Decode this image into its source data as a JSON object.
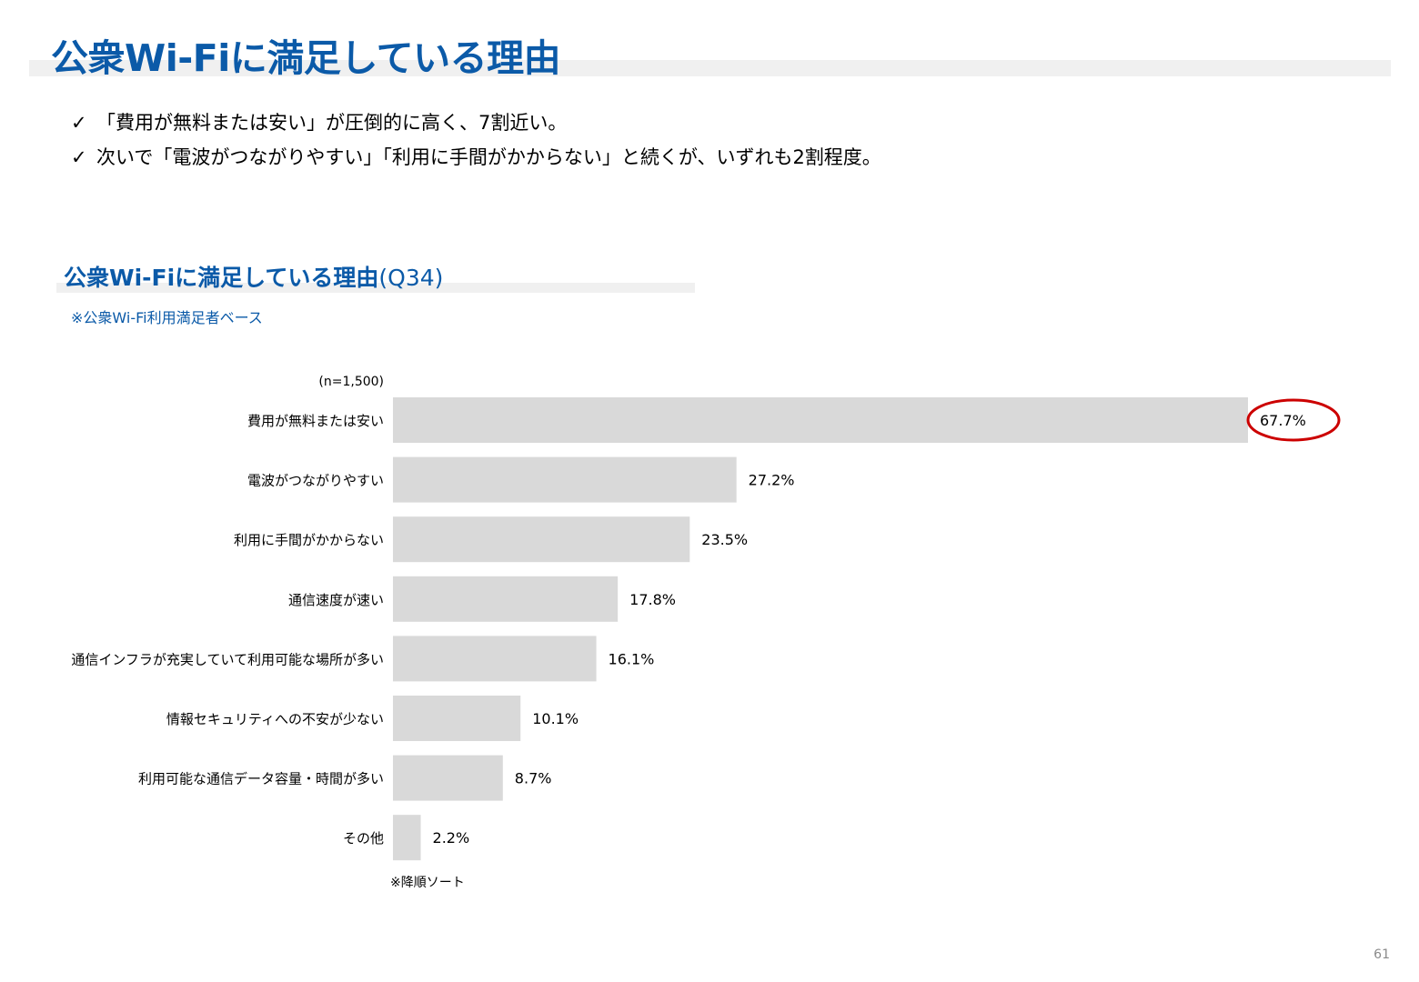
{
  "header": {
    "title": "公衆Wi-Fiに満足している理由"
  },
  "bullets": [
    "「費用が無料または安い」が圧倒的に高く、7割近い。",
    "次いで「電波がつながりやすい」「利用に手間がかからない」と続くが、いずれも2割程度。"
  ],
  "check_icon": "checkmark-icon",
  "chart_section": {
    "title": "公衆Wi-Fiに満足している理由",
    "question": "(Q34)",
    "subtitle": "※公衆Wi-Fi利用満足者ベース"
  },
  "chart_data": {
    "type": "bar",
    "orientation": "horizontal",
    "sample_label": "(n=1,500)",
    "categories": [
      "費用が無料または安い",
      "電波がつながりやすい",
      "利用に手間がかからない",
      "通信速度が速い",
      "通信インフラが充実していて利用可能な場所が多い",
      "情報セキュリティへの不安が少ない",
      "利用可能な通信データ容量・時間が多い",
      "その他"
    ],
    "values": [
      67.7,
      27.2,
      23.5,
      17.8,
      16.1,
      10.1,
      8.7,
      2.2
    ],
    "value_labels": [
      "67.7%",
      "27.2%",
      "23.5%",
      "17.8%",
      "16.1%",
      "10.1%",
      "8.7%",
      "2.2%"
    ],
    "bar_color": "#d9d9d9",
    "highlight_color": "#cc0000",
    "highlight_index": 0,
    "xlim": [
      0,
      67.7
    ],
    "grid": false,
    "footnote": "※降順ソート"
  },
  "page_number": "61"
}
